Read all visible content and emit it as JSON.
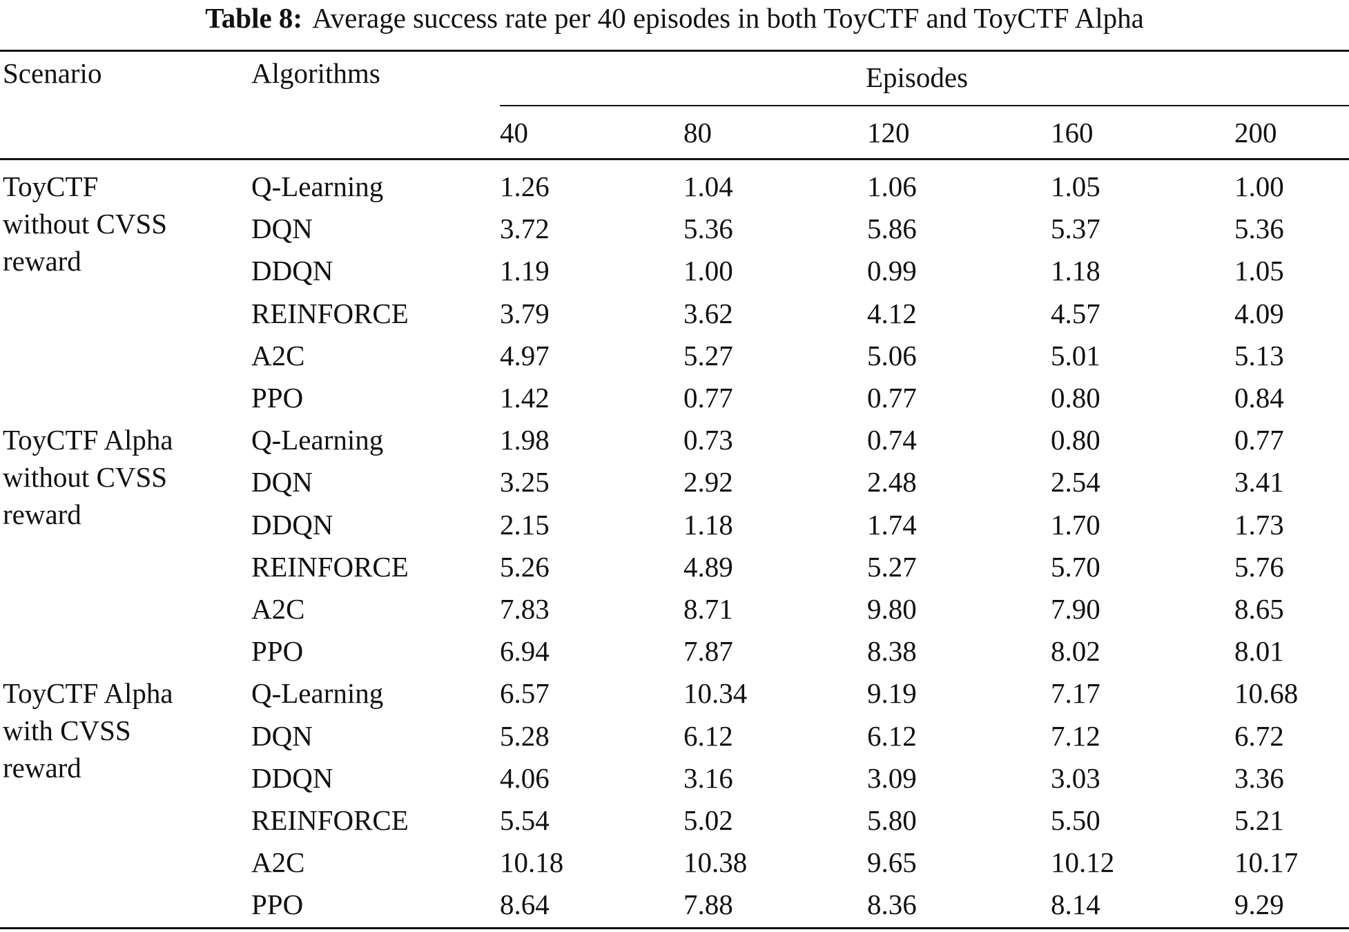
{
  "caption": {
    "label": "Table 8:",
    "text": "Average success rate per 40 episodes in both ToyCTF and ToyCTF Alpha"
  },
  "header": {
    "scenario": "Scenario",
    "algorithms": "Algorithms",
    "episodes": "Episodes",
    "episode_counts": [
      "40",
      "80",
      "120",
      "160",
      "200"
    ]
  },
  "groups": [
    {
      "scenario_lines": [
        "ToyCTF",
        "without CVSS",
        "reward"
      ],
      "rows": [
        {
          "algorithm": "Q-Learning",
          "values": [
            "1.26",
            "1.04",
            "1.06",
            "1.05",
            "1.00"
          ]
        },
        {
          "algorithm": "DQN",
          "values": [
            "3.72",
            "5.36",
            "5.86",
            "5.37",
            "5.36"
          ]
        },
        {
          "algorithm": "DDQN",
          "values": [
            "1.19",
            "1.00",
            "0.99",
            "1.18",
            "1.05"
          ]
        },
        {
          "algorithm": "REINFORCE",
          "values": [
            "3.79",
            "3.62",
            "4.12",
            "4.57",
            "4.09"
          ]
        },
        {
          "algorithm": "A2C",
          "values": [
            "4.97",
            "5.27",
            "5.06",
            "5.01",
            "5.13"
          ]
        },
        {
          "algorithm": "PPO",
          "values": [
            "1.42",
            "0.77",
            "0.77",
            "0.80",
            "0.84"
          ]
        }
      ]
    },
    {
      "scenario_lines": [
        "ToyCTF Alpha",
        "without CVSS",
        "reward"
      ],
      "rows": [
        {
          "algorithm": "Q-Learning",
          "values": [
            "1.98",
            "0.73",
            "0.74",
            "0.80",
            "0.77"
          ]
        },
        {
          "algorithm": "DQN",
          "values": [
            "3.25",
            "2.92",
            "2.48",
            "2.54",
            "3.41"
          ]
        },
        {
          "algorithm": "DDQN",
          "values": [
            "2.15",
            "1.18",
            "1.74",
            "1.70",
            "1.73"
          ]
        },
        {
          "algorithm": "REINFORCE",
          "values": [
            "5.26",
            "4.89",
            "5.27",
            "5.70",
            "5.76"
          ]
        },
        {
          "algorithm": "A2C",
          "values": [
            "7.83",
            "8.71",
            "9.80",
            "7.90",
            "8.65"
          ]
        },
        {
          "algorithm": "PPO",
          "values": [
            "6.94",
            "7.87",
            "8.38",
            "8.02",
            "8.01"
          ]
        }
      ]
    },
    {
      "scenario_lines": [
        "ToyCTF Alpha",
        "with CVSS",
        "reward"
      ],
      "rows": [
        {
          "algorithm": "Q-Learning",
          "values": [
            "6.57",
            "10.34",
            "9.19",
            "7.17",
            "10.68"
          ]
        },
        {
          "algorithm": "DQN",
          "values": [
            "5.28",
            "6.12",
            "6.12",
            "7.12",
            "6.72"
          ]
        },
        {
          "algorithm": "DDQN",
          "values": [
            "4.06",
            "3.16",
            "3.09",
            "3.03",
            "3.36"
          ]
        },
        {
          "algorithm": "REINFORCE",
          "values": [
            "5.54",
            "5.02",
            "5.80",
            "5.50",
            "5.21"
          ]
        },
        {
          "algorithm": "A2C",
          "values": [
            "10.18",
            "10.38",
            "9.65",
            "10.12",
            "10.17"
          ]
        },
        {
          "algorithm": "PPO",
          "values": [
            "8.64",
            "7.88",
            "8.36",
            "8.14",
            "9.29"
          ]
        }
      ]
    }
  ]
}
